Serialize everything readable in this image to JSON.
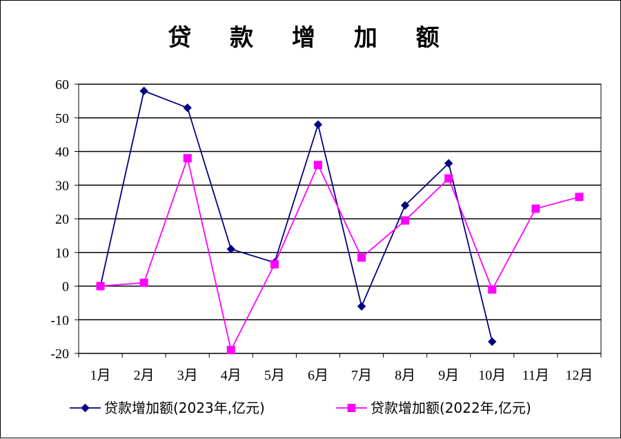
{
  "chart_data": {
    "type": "line",
    "title": "贷 款 增 加 额",
    "xlabel": "",
    "ylabel": "",
    "categories": [
      "1月",
      "2月",
      "3月",
      "4月",
      "5月",
      "6月",
      "7月",
      "8月",
      "9月",
      "10月",
      "11月",
      "12月"
    ],
    "ylim": [
      -20,
      60
    ],
    "yticks": [
      60,
      50,
      40,
      30,
      20,
      10,
      0,
      -10,
      -20
    ],
    "ytick_labels": [
      "60",
      "50",
      "40",
      "30",
      "20",
      "10",
      "0",
      "-10",
      "-20"
    ],
    "grid": true,
    "legend_position": "bottom",
    "series": [
      {
        "name": "贷款增加额(2023年,亿元)",
        "color": "#000080",
        "marker": "diamond",
        "values": [
          0,
          58,
          53,
          11,
          7,
          48,
          -6,
          24,
          36.5,
          -16.5,
          null,
          null
        ]
      },
      {
        "name": "贷款增加额(2022年,亿元)",
        "color": "#ff00ff",
        "marker": "square",
        "values": [
          0,
          1,
          38,
          -19,
          6.5,
          36,
          8.5,
          19.5,
          32,
          -1,
          23,
          26.5
        ]
      }
    ]
  }
}
